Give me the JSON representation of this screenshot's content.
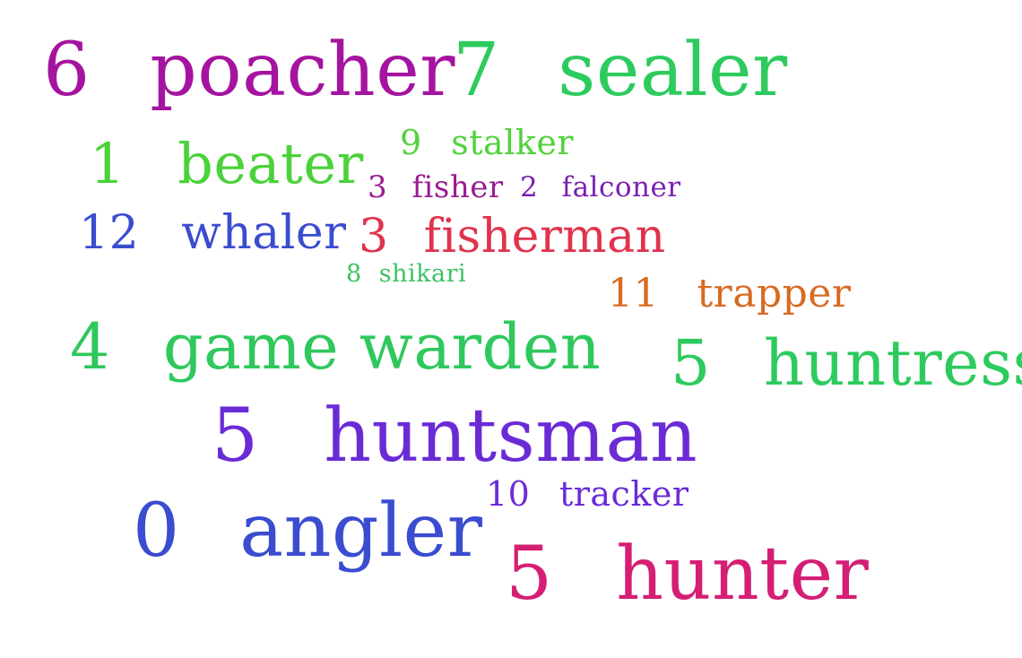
{
  "words": [
    {
      "id": "poacher",
      "number": "6",
      "label": "poacher",
      "color": "#a514a0"
    },
    {
      "id": "sealer",
      "number": "7",
      "label": "sealer",
      "color": "#2dcb5e"
    },
    {
      "id": "beater",
      "number": "1",
      "label": "beater",
      "color": "#4bd23a"
    },
    {
      "id": "stalker",
      "number": "9",
      "label": "stalker",
      "color": "#52d23c"
    },
    {
      "id": "fisher",
      "number": "3",
      "label": "fisher",
      "color": "#9a1c8f"
    },
    {
      "id": "falconer",
      "number": "2",
      "label": "falconer",
      "color": "#7a20b0"
    },
    {
      "id": "whaler",
      "number": "12",
      "label": "whaler",
      "color": "#3a4cd0"
    },
    {
      "id": "fisherman",
      "number": "3",
      "label": "fisherman",
      "color": "#e0334d"
    },
    {
      "id": "shikari",
      "number": "8",
      "label": "shikari",
      "color": "#3cc262"
    },
    {
      "id": "trapper",
      "number": "11",
      "label": "trapper",
      "color": "#d86a22"
    },
    {
      "id": "game-warden",
      "number": "4",
      "label": "game warden",
      "color": "#2ec85c"
    },
    {
      "id": "huntress",
      "number": "5",
      "label": "huntress",
      "color": "#2dcb5e"
    },
    {
      "id": "huntsman",
      "number": "5",
      "label": "huntsman",
      "color": "#6a2bd6"
    },
    {
      "id": "tracker",
      "number": "10",
      "label": "tracker",
      "color": "#6a2bd6"
    },
    {
      "id": "angler",
      "number": "0",
      "label": "angler",
      "color": "#3a4cd0"
    },
    {
      "id": "hunter",
      "number": "5",
      "label": "hunter",
      "color": "#d51f74"
    }
  ]
}
